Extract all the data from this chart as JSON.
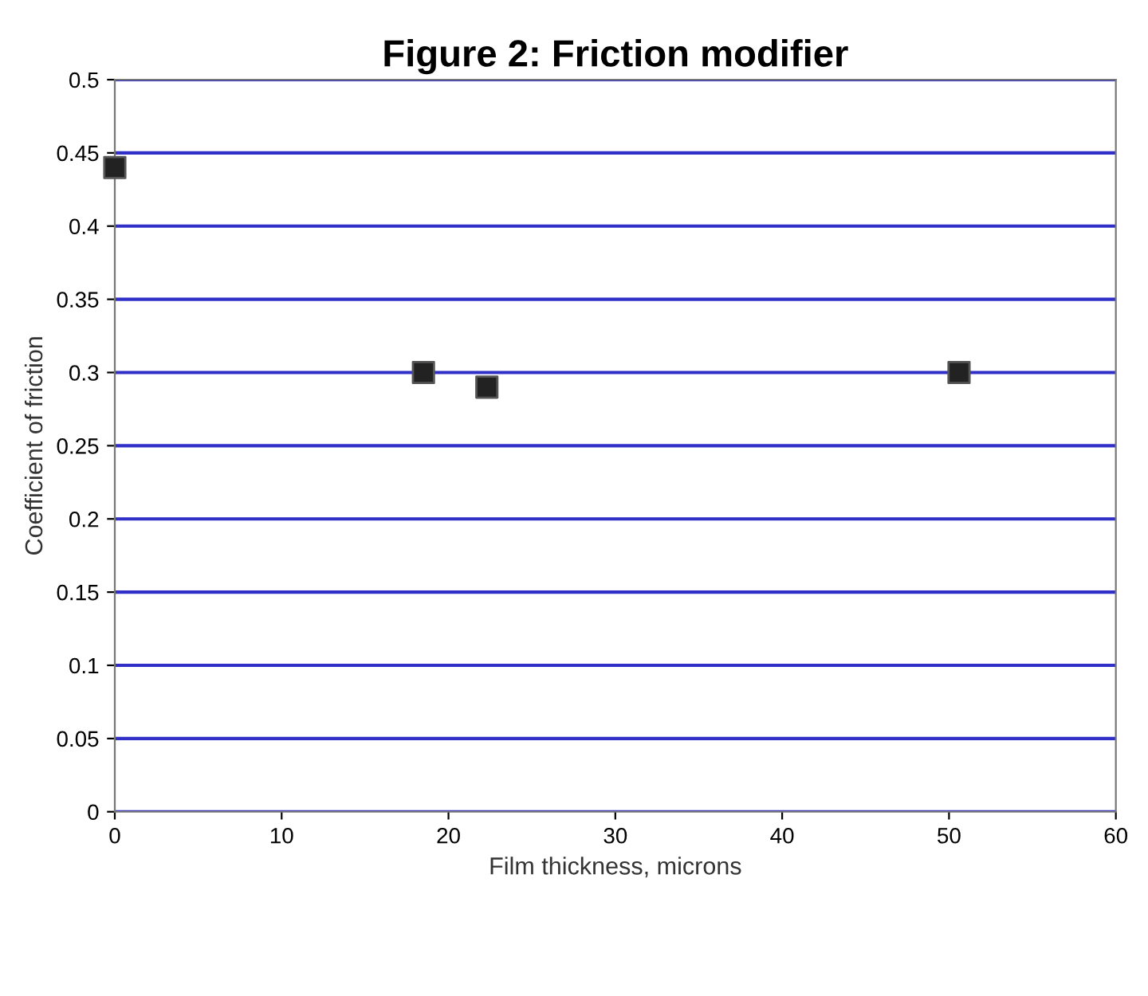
{
  "chart_data": {
    "type": "scatter",
    "title": "Figure 2: Friction modifier",
    "xlabel": "Film thickness, microns",
    "ylabel": "Coefficient of friction",
    "x": [
      0,
      18.5,
      22.3,
      50.6
    ],
    "values": [
      0.44,
      0.3,
      0.29,
      0.3
    ],
    "color": "#222222",
    "marker": "square",
    "grid": "y",
    "xlim": [
      0,
      60
    ],
    "xticks": [
      0,
      10,
      20,
      30,
      40,
      50,
      60
    ],
    "ylim": [
      0,
      0.5
    ],
    "yticks": [
      0,
      0.05,
      0.1,
      0.15,
      0.2,
      0.25,
      0.3,
      0.35,
      0.4,
      0.45,
      0.5
    ]
  }
}
